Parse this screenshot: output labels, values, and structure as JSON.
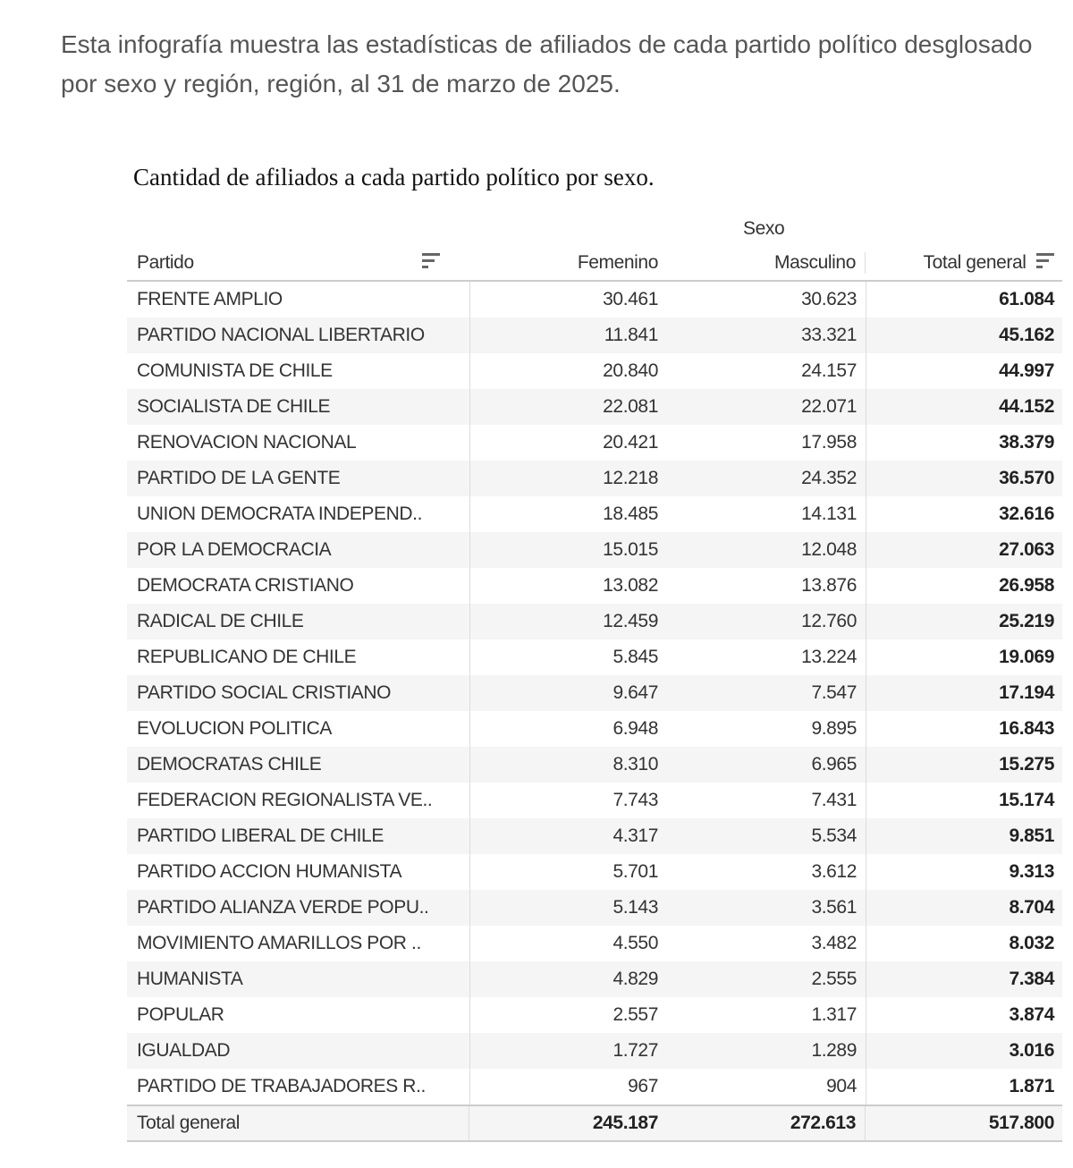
{
  "intro": {
    "line1": "Esta infografía muestra las estadísticas de afiliados de cada partido político desglosado por sexo y región,",
    "line2": "región, al 31 de marzo de 2025."
  },
  "caption": "Cantidad de afiliados a cada partido político por sexo.",
  "table": {
    "group_header": "Sexo",
    "columns": [
      "Partido",
      "Femenino",
      "Masculino",
      "Total general"
    ],
    "sort_icons": [
      "sort-descending-icon",
      "sort-descending-icon"
    ],
    "rows": [
      [
        "FRENTE AMPLIO",
        "30.461",
        "30.623",
        "61.084"
      ],
      [
        "PARTIDO NACIONAL LIBERTARIO",
        "11.841",
        "33.321",
        "45.162"
      ],
      [
        "COMUNISTA DE CHILE",
        "20.840",
        "24.157",
        "44.997"
      ],
      [
        "SOCIALISTA DE CHILE",
        "22.081",
        "22.071",
        "44.152"
      ],
      [
        "RENOVACION NACIONAL",
        "20.421",
        "17.958",
        "38.379"
      ],
      [
        "PARTIDO DE LA GENTE",
        "12.218",
        "24.352",
        "36.570"
      ],
      [
        "UNION DEMOCRATA INDEPEND..",
        "18.485",
        "14.131",
        "32.616"
      ],
      [
        "POR LA DEMOCRACIA",
        "15.015",
        "12.048",
        "27.063"
      ],
      [
        "DEMOCRATA CRISTIANO",
        "13.082",
        "13.876",
        "26.958"
      ],
      [
        "RADICAL DE CHILE",
        "12.459",
        "12.760",
        "25.219"
      ],
      [
        "REPUBLICANO DE CHILE",
        "5.845",
        "13.224",
        "19.069"
      ],
      [
        "PARTIDO SOCIAL CRISTIANO",
        "9.647",
        "7.547",
        "17.194"
      ],
      [
        "EVOLUCION POLITICA",
        "6.948",
        "9.895",
        "16.843"
      ],
      [
        "DEMOCRATAS CHILE",
        "8.310",
        "6.965",
        "15.275"
      ],
      [
        "FEDERACION REGIONALISTA VE..",
        "7.743",
        "7.431",
        "15.174"
      ],
      [
        "PARTIDO LIBERAL DE CHILE",
        "4.317",
        "5.534",
        "9.851"
      ],
      [
        "PARTIDO ACCION HUMANISTA",
        "5.701",
        "3.612",
        "9.313"
      ],
      [
        "PARTIDO ALIANZA VERDE POPU..",
        "5.143",
        "3.561",
        "8.704"
      ],
      [
        "MOVIMIENTO AMARILLOS POR ..",
        "4.550",
        "3.482",
        "8.032"
      ],
      [
        "HUMANISTA",
        "4.829",
        "2.555",
        "7.384"
      ],
      [
        "POPULAR",
        "2.557",
        "1.317",
        "3.874"
      ],
      [
        "IGUALDAD",
        "1.727",
        "1.289",
        "3.016"
      ],
      [
        "PARTIDO DE TRABAJADORES R..",
        "967",
        "904",
        "1.871"
      ]
    ],
    "total": [
      "Total general",
      "245.187",
      "272.613",
      "517.800"
    ]
  }
}
